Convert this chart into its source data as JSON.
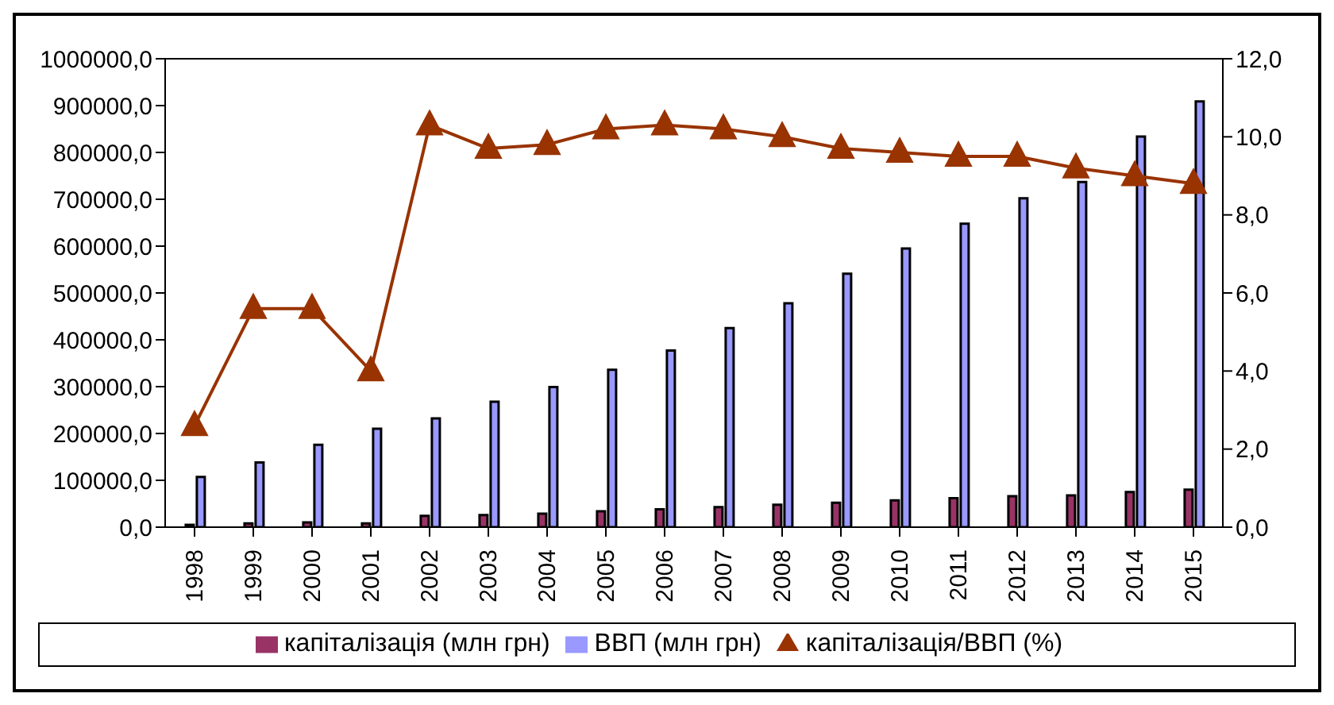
{
  "chart_data": {
    "type": "bar",
    "categories": [
      "1998",
      "1999",
      "2000",
      "2001",
      "2002",
      "2003",
      "2004",
      "2005",
      "2006",
      "2007",
      "2008",
      "2009",
      "2010",
      "2011",
      "2012",
      "2013",
      "2014",
      "2015"
    ],
    "series": [
      {
        "name": "капіталізація (млн грн)",
        "color": "#993366",
        "values": [
          5000,
          8000,
          10000,
          8000,
          24000,
          26000,
          29000,
          34000,
          38000,
          43000,
          48000,
          52000,
          57000,
          62000,
          66000,
          68000,
          75000,
          80000
        ]
      },
      {
        "name": "ВВП (млн грн)",
        "color": "#9999ff",
        "values": [
          107000,
          138000,
          176000,
          210000,
          232000,
          268000,
          299000,
          336000,
          377000,
          425000,
          478000,
          541000,
          595000,
          648000,
          702000,
          737000,
          834000,
          909000
        ]
      },
      {
        "name": "капіталізація/ВВП (%)",
        "type": "line",
        "axis": "y2",
        "color": "#993300",
        "marker": "triangle",
        "values": [
          2.6,
          5.6,
          5.6,
          4.0,
          10.3,
          9.7,
          9.8,
          10.2,
          10.3,
          10.2,
          10.0,
          9.7,
          9.6,
          9.5,
          9.5,
          9.2,
          9.0,
          8.8
        ]
      }
    ],
    "ylim": [
      0,
      1000000
    ],
    "yticks": [
      {
        "value": 0,
        "label": "0,0"
      },
      {
        "value": 100000,
        "label": "100000,0"
      },
      {
        "value": 200000,
        "label": "200000,0"
      },
      {
        "value": 300000,
        "label": "300000,0"
      },
      {
        "value": 400000,
        "label": "400000,0"
      },
      {
        "value": 500000,
        "label": "500000,0"
      },
      {
        "value": 600000,
        "label": "600000,0"
      },
      {
        "value": 700000,
        "label": "700000,0"
      },
      {
        "value": 800000,
        "label": "800000,0"
      },
      {
        "value": 900000,
        "label": "900000,0"
      },
      {
        "value": 1000000,
        "label": "1000000,0"
      }
    ],
    "y2lim": [
      0,
      12
    ],
    "y2ticks": [
      {
        "value": 0,
        "label": "0,0"
      },
      {
        "value": 2,
        "label": "2,0"
      },
      {
        "value": 4,
        "label": "4,0"
      },
      {
        "value": 6,
        "label": "6,0"
      },
      {
        "value": 8,
        "label": "8,0"
      },
      {
        "value": 10,
        "label": "10,0"
      },
      {
        "value": 12,
        "label": "12,0"
      }
    ],
    "grid": false,
    "legend": "bottom"
  }
}
